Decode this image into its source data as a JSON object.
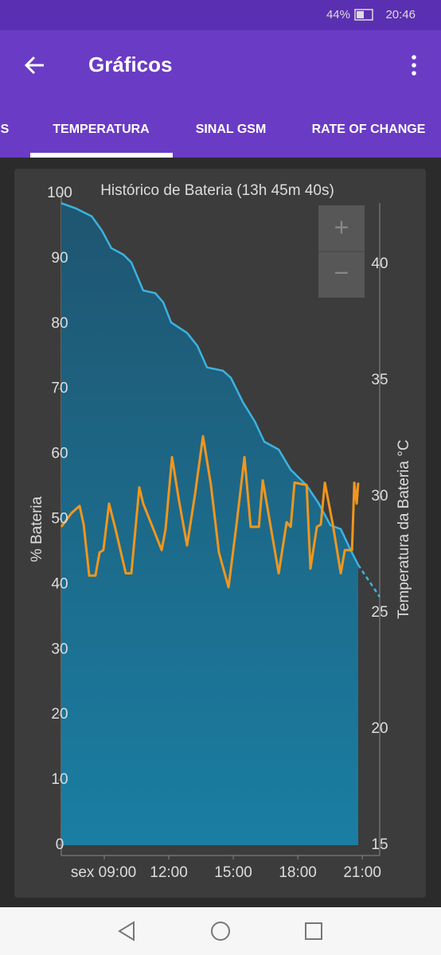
{
  "status_bar": {
    "battery": "44%",
    "time": "20:46"
  },
  "app_bar": {
    "title": "Gráficos"
  },
  "tabs": [
    "S",
    "TEMPERATURA",
    "SINAL GSM",
    "RATE OF CHANGE"
  ],
  "zoom": {
    "in": "+",
    "out": "−"
  },
  "chart_data": {
    "type": "line",
    "title": "Histórico de Bateria (13h 45m 40s)",
    "y_label": "% Bateria",
    "y2_label": "Temperatura da Bateria °C",
    "xlim": [
      7,
      21.81
    ],
    "xticks": [
      {
        "value": 9,
        "label": "sex 09:00"
      },
      {
        "value": 12,
        "label": "12:00"
      },
      {
        "value": 15,
        "label": "15:00"
      },
      {
        "value": 18,
        "label": "18:00"
      },
      {
        "value": 21,
        "label": "21:00"
      }
    ],
    "ylim": [
      0,
      100
    ],
    "yticks": [
      0,
      10,
      20,
      30,
      40,
      50,
      60,
      70,
      80,
      90,
      100
    ],
    "y2lim": [
      15,
      43.05
    ],
    "y2ticks": [
      15,
      20,
      25,
      30,
      35,
      40
    ],
    "series": [
      {
        "color": "#3bb3e0",
        "fill": true,
        "x": [
          7.0,
          7.67,
          8.41,
          8.89,
          9.33,
          9.89,
          10.26,
          10.81,
          11.37,
          11.74,
          12.11,
          12.85,
          13.33,
          13.78,
          14.52,
          14.89,
          15.44,
          16.0,
          16.44,
          17.11,
          17.67,
          18.41,
          18.96,
          19.52,
          20.0,
          20.44,
          20.81
        ],
        "values": [
          98.5,
          97.7,
          96.5,
          94.3,
          91.6,
          90.6,
          89.4,
          85.1,
          84.7,
          83.3,
          80.2,
          78.6,
          76.6,
          73.3,
          72.8,
          71.7,
          68.0,
          65.0,
          61.9,
          60.7,
          57.6,
          55.2,
          52.5,
          49.1,
          48.5,
          45.4,
          43.0
        ]
      },
      {
        "color": "#3bb3e0",
        "dash": true,
        "x": [
          20.81,
          21.81
        ],
        "values": [
          43.0,
          38.1
        ]
      },
      {
        "color": "#f0961e",
        "axis": "y2",
        "x": [
          7.0,
          7.48,
          7.85,
          8.04,
          8.3,
          8.59,
          8.78,
          8.96,
          9.22,
          9.52,
          10.0,
          10.26,
          10.63,
          10.81,
          11.37,
          11.67,
          11.85,
          12.15,
          12.48,
          12.85,
          13.22,
          13.59,
          13.96,
          14.33,
          14.78,
          15.15,
          15.52,
          15.81,
          16.19,
          16.37,
          16.74,
          17.11,
          17.48,
          17.67,
          17.85,
          18.41,
          18.59,
          18.89,
          19.07,
          19.26,
          19.63,
          20.0,
          20.19,
          20.52,
          20.63,
          20.74,
          20.81
        ],
        "values": [
          28.7,
          29.3,
          29.6,
          28.8,
          26.6,
          26.6,
          27.6,
          27.7,
          29.7,
          28.6,
          26.7,
          26.7,
          30.4,
          29.7,
          28.4,
          27.7,
          28.6,
          31.7,
          29.8,
          27.9,
          30.1,
          32.6,
          30.5,
          27.6,
          26.1,
          28.8,
          31.7,
          28.7,
          28.7,
          30.7,
          28.7,
          26.7,
          28.9,
          28.7,
          30.6,
          30.5,
          26.9,
          28.7,
          28.8,
          30.6,
          28.8,
          26.7,
          27.7,
          27.7,
          30.6,
          29.7,
          30.6
        ]
      }
    ]
  }
}
